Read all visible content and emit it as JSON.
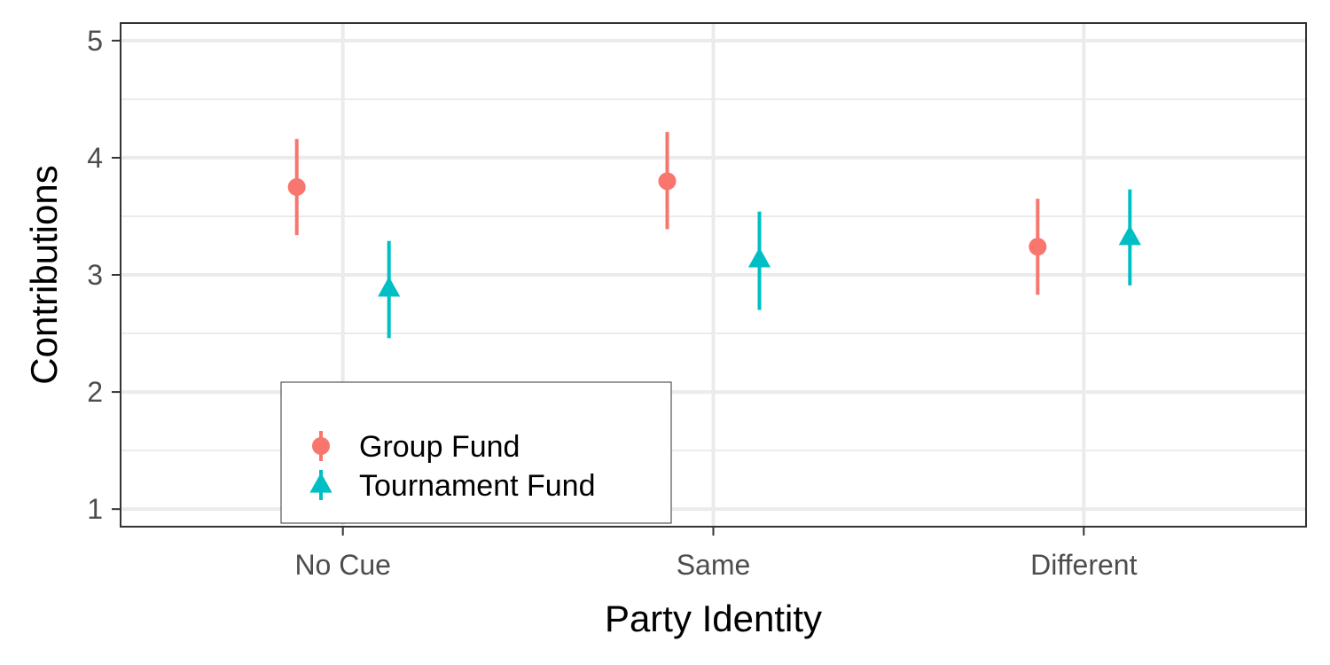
{
  "chart_data": {
    "type": "scatter",
    "title": "",
    "xlabel": "Party Identity",
    "ylabel": "Contributions",
    "categories": [
      "No Cue",
      "Same",
      "Different"
    ],
    "ylim": [
      0.85,
      5.15
    ],
    "yticks": [
      1,
      2,
      3,
      4,
      5
    ],
    "grid": true,
    "legend_position": "bottom-left",
    "series": [
      {
        "name": "Group Fund",
        "marker": "circle",
        "color": "#F8766D",
        "values": [
          3.75,
          3.8,
          3.24
        ],
        "lower": [
          3.34,
          3.39,
          2.83
        ],
        "upper": [
          4.16,
          4.22,
          3.65
        ]
      },
      {
        "name": "Tournament Fund",
        "marker": "triangle",
        "color": "#00BFC4",
        "values": [
          2.88,
          3.13,
          3.32
        ],
        "lower": [
          2.46,
          2.7,
          2.91
        ],
        "upper": [
          3.29,
          3.54,
          3.73
        ]
      }
    ]
  }
}
